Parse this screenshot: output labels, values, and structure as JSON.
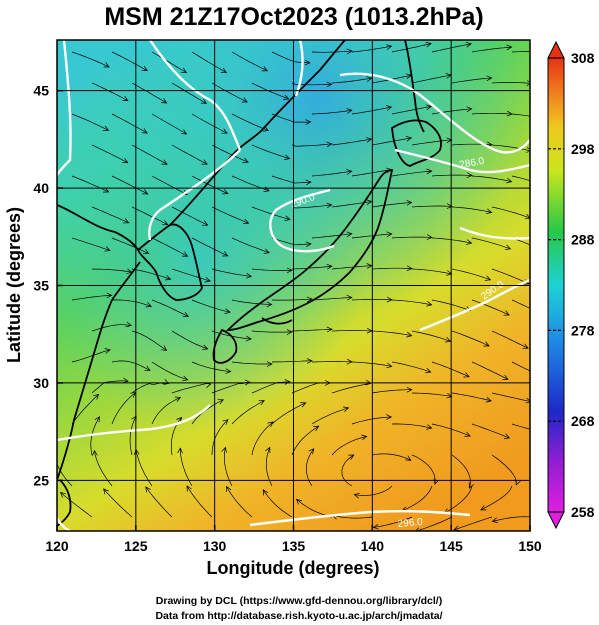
{
  "title": "MSM 21Z17Oct2023 (1013.2hPa)",
  "x_axis": {
    "label": "Longitude (degrees)",
    "ticks": [
      "120",
      "125",
      "130",
      "135",
      "140",
      "145",
      "150"
    ],
    "range": [
      120,
      150
    ]
  },
  "y_axis": {
    "label": "Latitude  (degrees)",
    "ticks": [
      "25",
      "30",
      "35",
      "40",
      "45"
    ],
    "range": [
      22.4,
      47.6
    ]
  },
  "colorbar": {
    "ticks": [
      "258",
      "268",
      "278",
      "288",
      "298",
      "308"
    ],
    "range": [
      258,
      308
    ],
    "colors": [
      "#d21fd2",
      "#1e22c8",
      "#1fd2d2",
      "#2dc832",
      "#e6e61e",
      "#f0a01e",
      "#e63214"
    ]
  },
  "contour_labels": [
    "290.0",
    "286.0",
    "290.0",
    "296.0"
  ],
  "credits": {
    "line1": "Drawing by DCL (https://www.gfd-dennou.org/library/dcl/)",
    "line2": "Data from http://database.rish.kyoto-u.ac.jp/arch/jmadata/"
  },
  "map": {
    "land_color": "#000000",
    "contour_color": "#ffffff",
    "streamline_color": "#000000"
  }
}
